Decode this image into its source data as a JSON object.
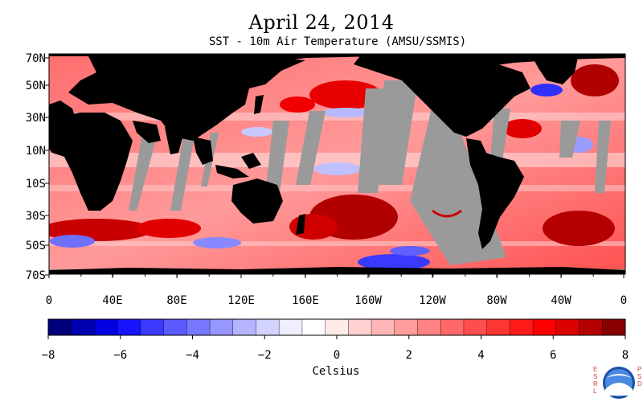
{
  "title": "April 24, 2014",
  "subtitle": "SST - 10m Air Temperature (AMSU/SSMIS)",
  "lat_labels": [
    "70N",
    "50N",
    "30N",
    "10N",
    "10S",
    "30S",
    "50S",
    "70S"
  ],
  "lon_labels": [
    "0",
    "40E",
    "80E",
    "120E",
    "160E",
    "160W",
    "120W",
    "80W",
    "40W",
    "0"
  ],
  "colorbar": {
    "ticks": [
      "−8",
      "−6",
      "−4",
      "−2",
      "0",
      "2",
      "4",
      "6",
      "8"
    ],
    "unit_label": "Celsius",
    "colors": [
      "#00007a",
      "#0000b0",
      "#0000e0",
      "#1414ff",
      "#3a3aff",
      "#5a5aff",
      "#7878ff",
      "#9696ff",
      "#b4b4ff",
      "#d2d2ff",
      "#eeeeff",
      "#ffffff",
      "#ffeaea",
      "#ffd0d0",
      "#ffb6b6",
      "#ff9c9c",
      "#ff8282",
      "#ff6868",
      "#ff4e4e",
      "#ff3434",
      "#ff1a1a",
      "#ff0000",
      "#dd0000",
      "#b40000",
      "#8a0000"
    ]
  },
  "colors": {
    "land": "#000000",
    "no_data": "#9a9a9a",
    "ice": "#ffffff"
  },
  "logo": {
    "left_letters": "ESRL",
    "right_letters": "PSD",
    "emblem": "NOAA"
  }
}
